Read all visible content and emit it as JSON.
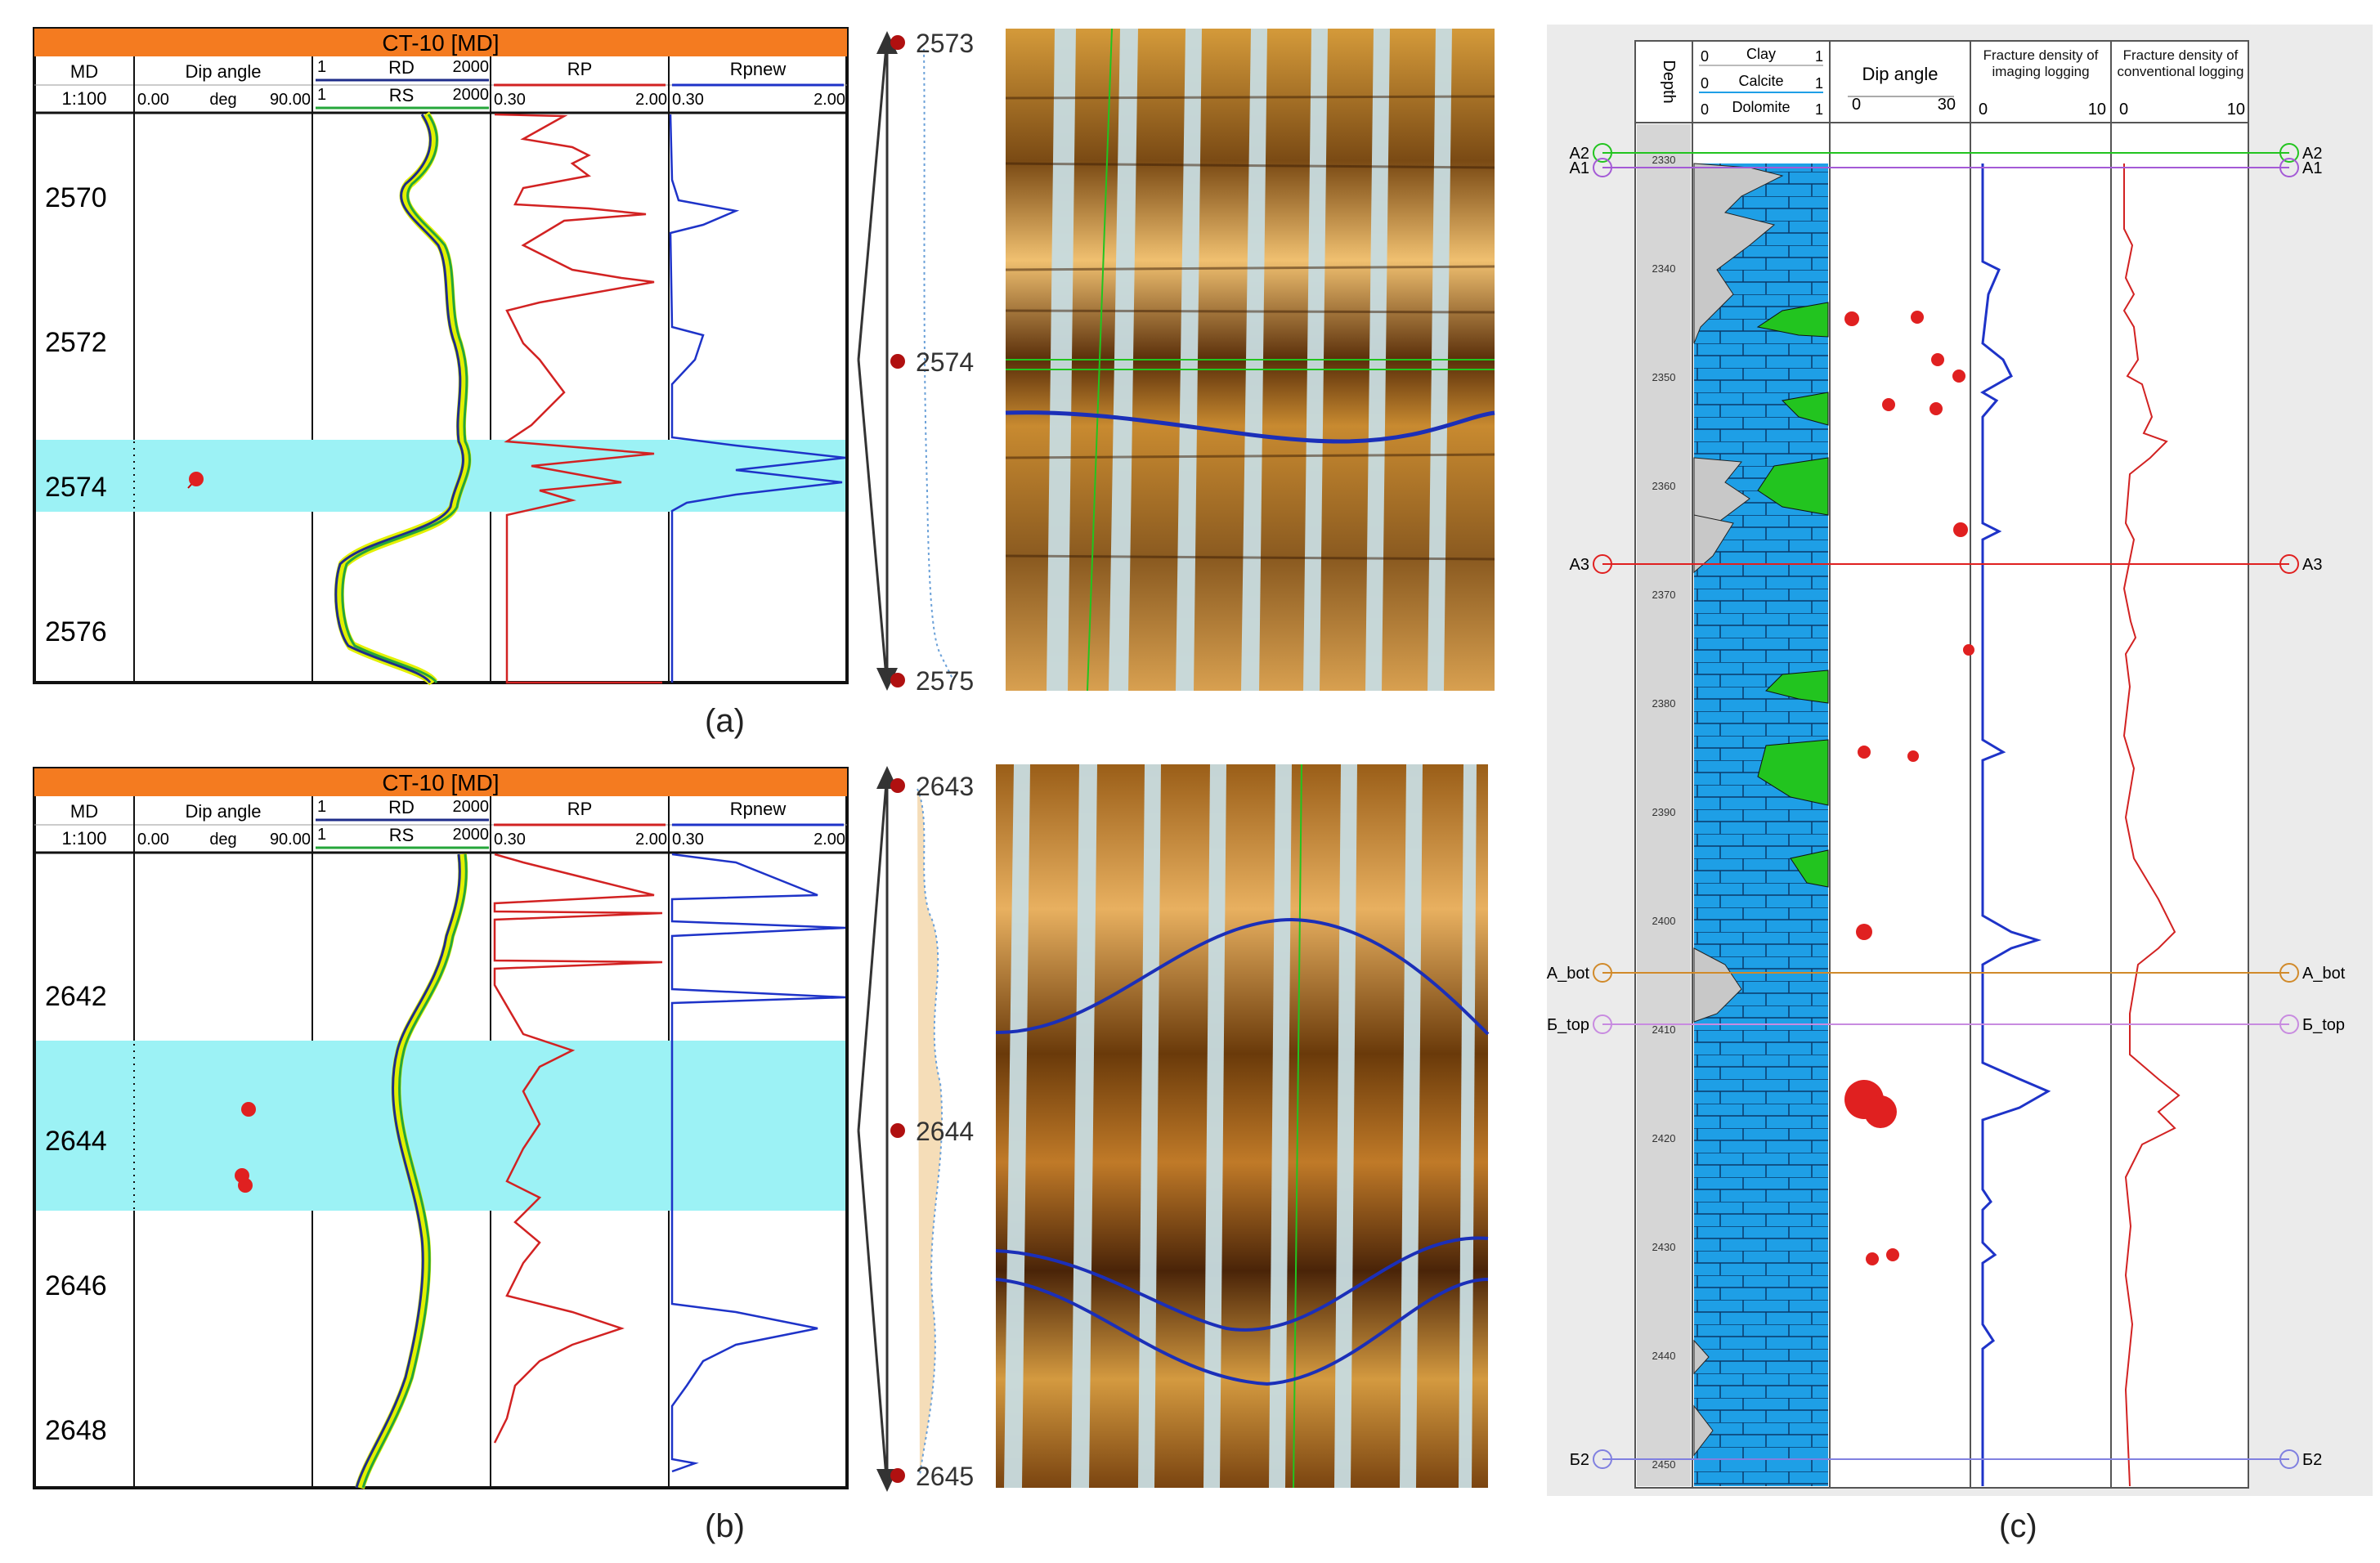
{
  "colors": {
    "title_bar": "#f47b20",
    "highlight": "#9cf2f5",
    "rd": "#1f2d8a",
    "rs": "#25a63a",
    "fill_between": "#e2f000",
    "rp": "#d22222",
    "rpnew": "#1e33c8",
    "limestone": "#1e9fe6",
    "dolomite_patch": "#22c41f",
    "clay": "#c8c8c8",
    "marker_green": "#22c41f",
    "marker_purple": "#a45ad6",
    "marker_red": "#e02020",
    "marker_orange": "#d18a2a",
    "marker_violet": "#c88be0",
    "marker_blue": "#8080e0"
  },
  "panel_a": {
    "title": "CT-10 [MD]",
    "headers": {
      "md": "MD",
      "dip": "Dip angle",
      "rd": "RD",
      "rs": "RS",
      "rp": "RP",
      "rpnew": "Rpnew"
    },
    "scale": "1:100",
    "dip_min": "0.00",
    "dip_unit": "deg",
    "dip_max": "90.00",
    "rd_min": "1",
    "rd_max": "2000",
    "rs_min": "1",
    "rs_max": "2000",
    "rp_min": "0.30",
    "rp_max": "2.00",
    "rpnew_min": "0.30",
    "rpnew_max": "2.00",
    "depths": [
      "2570",
      "2572",
      "2574",
      "2576"
    ],
    "image_depths": [
      "2573",
      "2574",
      "2575"
    ],
    "caption": "(a)"
  },
  "panel_b": {
    "title": "CT-10 [MD]",
    "headers": {
      "md": "MD",
      "dip": "Dip angle",
      "rd": "RD",
      "rs": "RS",
      "rp": "RP",
      "rpnew": "Rpnew"
    },
    "scale": "1:100",
    "dip_min": "0.00",
    "dip_unit": "deg",
    "dip_max": "90.00",
    "rd_min": "1",
    "rd_max": "2000",
    "rs_min": "1",
    "rs_max": "2000",
    "rp_min": "0.30",
    "rp_max": "2.00",
    "rpnew_min": "0.30",
    "rpnew_max": "2.00",
    "depths": [
      "2642",
      "2644",
      "2646",
      "2648"
    ],
    "image_depths": [
      "2643",
      "2644",
      "2645"
    ],
    "caption": "(b)"
  },
  "panel_c": {
    "depth_header": "Depth",
    "lith_clay": "Clay",
    "lith_calcite": "Calcite",
    "lith_dolomite": "Dolomite",
    "lith_min": "0",
    "lith_max": "1",
    "dip_header": "Dip angle",
    "dip_min": "0",
    "dip_max": "30",
    "frac_img_header": "Fracture density of imaging logging",
    "frac_conv_header": "Fracture density of conventional logging",
    "frac_min": "0",
    "frac_max": "10",
    "depth_ticks": [
      "2330",
      "2340",
      "2350",
      "2360",
      "2370",
      "2380",
      "2390",
      "2400",
      "2410",
      "2420",
      "2430",
      "2440",
      "2450"
    ],
    "markers": [
      {
        "label_left": "A2",
        "label_right": "A2"
      },
      {
        "label_left": "A1",
        "label_right": "A1"
      },
      {
        "label_left": "A3",
        "label_right": "A3"
      },
      {
        "label_left": "A_bot",
        "label_right": "A_bot"
      },
      {
        "label_left": "Б_top",
        "label_right": "Б_top"
      },
      {
        "label_left": "Б2",
        "label_right": "Б2"
      }
    ],
    "caption": "(c)"
  }
}
